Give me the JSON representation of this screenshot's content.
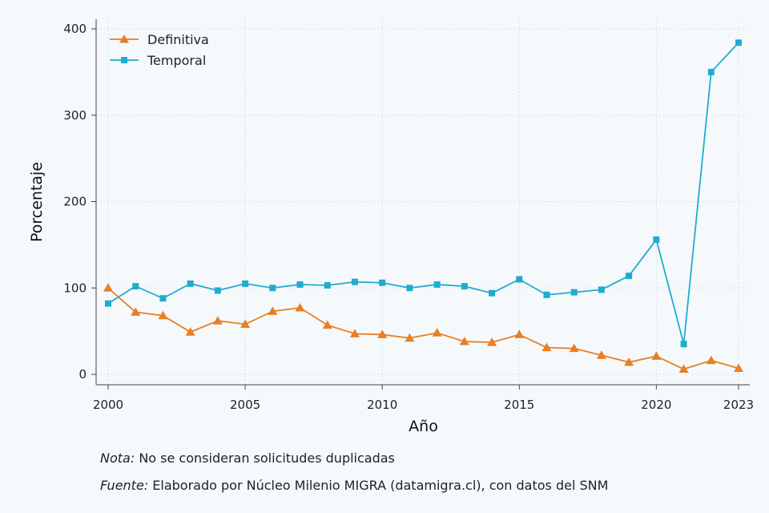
{
  "chart_data": {
    "type": "line",
    "xlabel": "Año",
    "ylabel": "Porcentaje",
    "xlim": [
      2000,
      2023
    ],
    "ylim": [
      0,
      400
    ],
    "x_ticks": [
      2000,
      2005,
      2010,
      2015,
      2020,
      2023
    ],
    "y_ticks": [
      0,
      100,
      200,
      300,
      400
    ],
    "grid": true,
    "legend_position": "top-left",
    "x": [
      2000,
      2001,
      2002,
      2003,
      2004,
      2005,
      2006,
      2007,
      2008,
      2009,
      2010,
      2011,
      2012,
      2013,
      2014,
      2015,
      2016,
      2017,
      2018,
      2019,
      2020,
      2021,
      2022,
      2023
    ],
    "series": [
      {
        "name": "Definitiva",
        "color": "#e87f22",
        "marker": "triangle",
        "values": [
          100,
          72,
          68,
          49,
          62,
          58,
          73,
          77,
          57,
          47,
          46,
          42,
          48,
          38,
          37,
          46,
          31,
          30,
          22,
          14,
          21,
          6,
          16,
          7
        ]
      },
      {
        "name": "Temporal",
        "color": "#1faccf",
        "marker": "square",
        "values": [
          82,
          102,
          88,
          105,
          97,
          105,
          100,
          104,
          103,
          107,
          106,
          100,
          104,
          102,
          94,
          110,
          92,
          95,
          98,
          114,
          156,
          35,
          350,
          384
        ]
      }
    ]
  },
  "notes": {
    "nota_lead": "Nota:",
    "nota_text": " No se consideran solicitudes duplicadas",
    "fuente_lead": "Fuente:",
    "fuente_text": " Elaborado por Núcleo Milenio MIGRA (datamigra.cl), con datos del SNM"
  }
}
